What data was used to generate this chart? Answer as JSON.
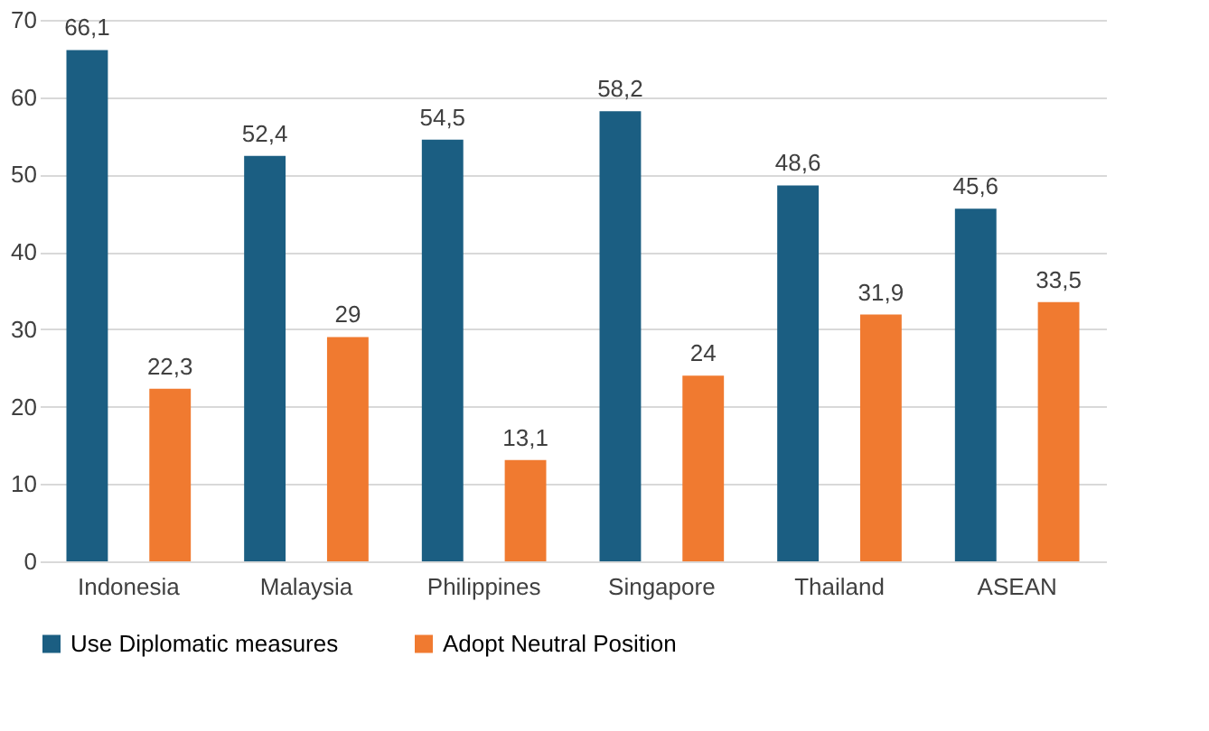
{
  "chart_data": {
    "type": "bar",
    "categories": [
      "Indonesia",
      "Malaysia",
      "Philippines",
      "Singapore",
      "Thailand",
      "ASEAN"
    ],
    "series": [
      {
        "name": "Use Diplomatic measures",
        "color": "#1b5e82",
        "values": [
          66.1,
          52.4,
          54.5,
          58.2,
          48.6,
          45.6
        ],
        "value_labels": [
          "66,1",
          "52,4",
          "54,5",
          "58,2",
          "48,6",
          "45,6"
        ]
      },
      {
        "name": "Adopt Neutral Position",
        "color": "#f07a30",
        "values": [
          22.3,
          29,
          13.1,
          24,
          31.9,
          33.5
        ],
        "value_labels": [
          "22,3",
          "29",
          "13,1",
          "24",
          "31,9",
          "33,5"
        ]
      }
    ],
    "ylim": [
      0,
      70
    ],
    "yticks": [
      0,
      10,
      20,
      30,
      40,
      50,
      60,
      70
    ],
    "grid": "y",
    "legend": "bottom"
  }
}
